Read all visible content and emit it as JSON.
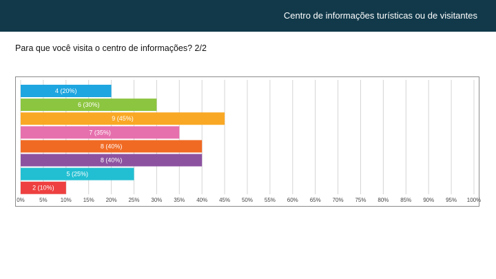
{
  "header": {
    "title": "Centro de informações turísticas ou de visitantes"
  },
  "question": {
    "text": "Para que você visita o centro de informações? 2/2"
  },
  "chart_data": {
    "type": "bar",
    "orientation": "horizontal",
    "title": "",
    "xlabel": "",
    "ylabel": "",
    "xlim": [
      0,
      100
    ],
    "grid": true,
    "ticks": [
      "0%",
      "5%",
      "10%",
      "15%",
      "20%",
      "25%",
      "30%",
      "35%",
      "40%",
      "45%",
      "50%",
      "55%",
      "60%",
      "65%",
      "70%",
      "75%",
      "80%",
      "85%",
      "90%",
      "95%",
      "100%"
    ],
    "bars": [
      {
        "count": 4,
        "percent": 20,
        "label": "4 (20%)",
        "color": "#1ea6e0"
      },
      {
        "count": 6,
        "percent": 30,
        "label": "6 (30%)",
        "color": "#8cc540"
      },
      {
        "count": 9,
        "percent": 45,
        "label": "9 (45%)",
        "color": "#f9a825"
      },
      {
        "count": 7,
        "percent": 35,
        "label": "7 (35%)",
        "color": "#e670ad"
      },
      {
        "count": 8,
        "percent": 40,
        "label": "8 (40%)",
        "color": "#f06a24"
      },
      {
        "count": 8,
        "percent": 40,
        "label": "8 (40%)",
        "color": "#8c52a0"
      },
      {
        "count": 5,
        "percent": 25,
        "label": "5 (25%)",
        "color": "#22bfd2"
      },
      {
        "count": 2,
        "percent": 10,
        "label": "2 (10%)",
        "color": "#ee4040"
      }
    ]
  }
}
